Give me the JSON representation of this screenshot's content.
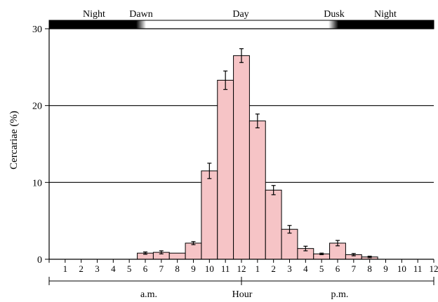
{
  "chart_data": {
    "type": "bar",
    "title": "",
    "ylabel": "Cercariae (%)",
    "xlabel": "Hour",
    "ylim": [
      0,
      30
    ],
    "y_ticks": [
      0,
      10,
      20,
      30
    ],
    "grid": "horizontal",
    "categories": [
      "1",
      "2",
      "3",
      "4",
      "5",
      "6",
      "7",
      "8",
      "9",
      "10",
      "11",
      "12",
      "1",
      "2",
      "3",
      "4",
      "5",
      "6",
      "7",
      "8",
      "9",
      "10",
      "11",
      "12"
    ],
    "values": [
      0,
      0,
      0,
      0,
      0,
      0.8,
      0.9,
      0.8,
      2.1,
      11.5,
      23.3,
      26.5,
      18.0,
      9.0,
      3.9,
      1.4,
      0.7,
      2.1,
      0.6,
      0.3,
      0,
      0,
      0,
      0
    ],
    "errors": [
      0,
      0,
      0,
      0,
      0,
      0.15,
      0.2,
      0,
      0.2,
      1.0,
      1.2,
      0.9,
      0.9,
      0.6,
      0.5,
      0.3,
      0.1,
      0.35,
      0.15,
      0.1,
      0,
      0,
      0,
      0
    ],
    "bar_color": "#f6c4c6",
    "period_labels": {
      "am": "a.m.",
      "pm": "p.m."
    },
    "light_bar": {
      "labels": [
        "Night",
        "Dawn",
        "Day",
        "Dusk",
        "Night"
      ],
      "colors": {
        "night": "#000000",
        "day": "#ffffff"
      }
    }
  }
}
